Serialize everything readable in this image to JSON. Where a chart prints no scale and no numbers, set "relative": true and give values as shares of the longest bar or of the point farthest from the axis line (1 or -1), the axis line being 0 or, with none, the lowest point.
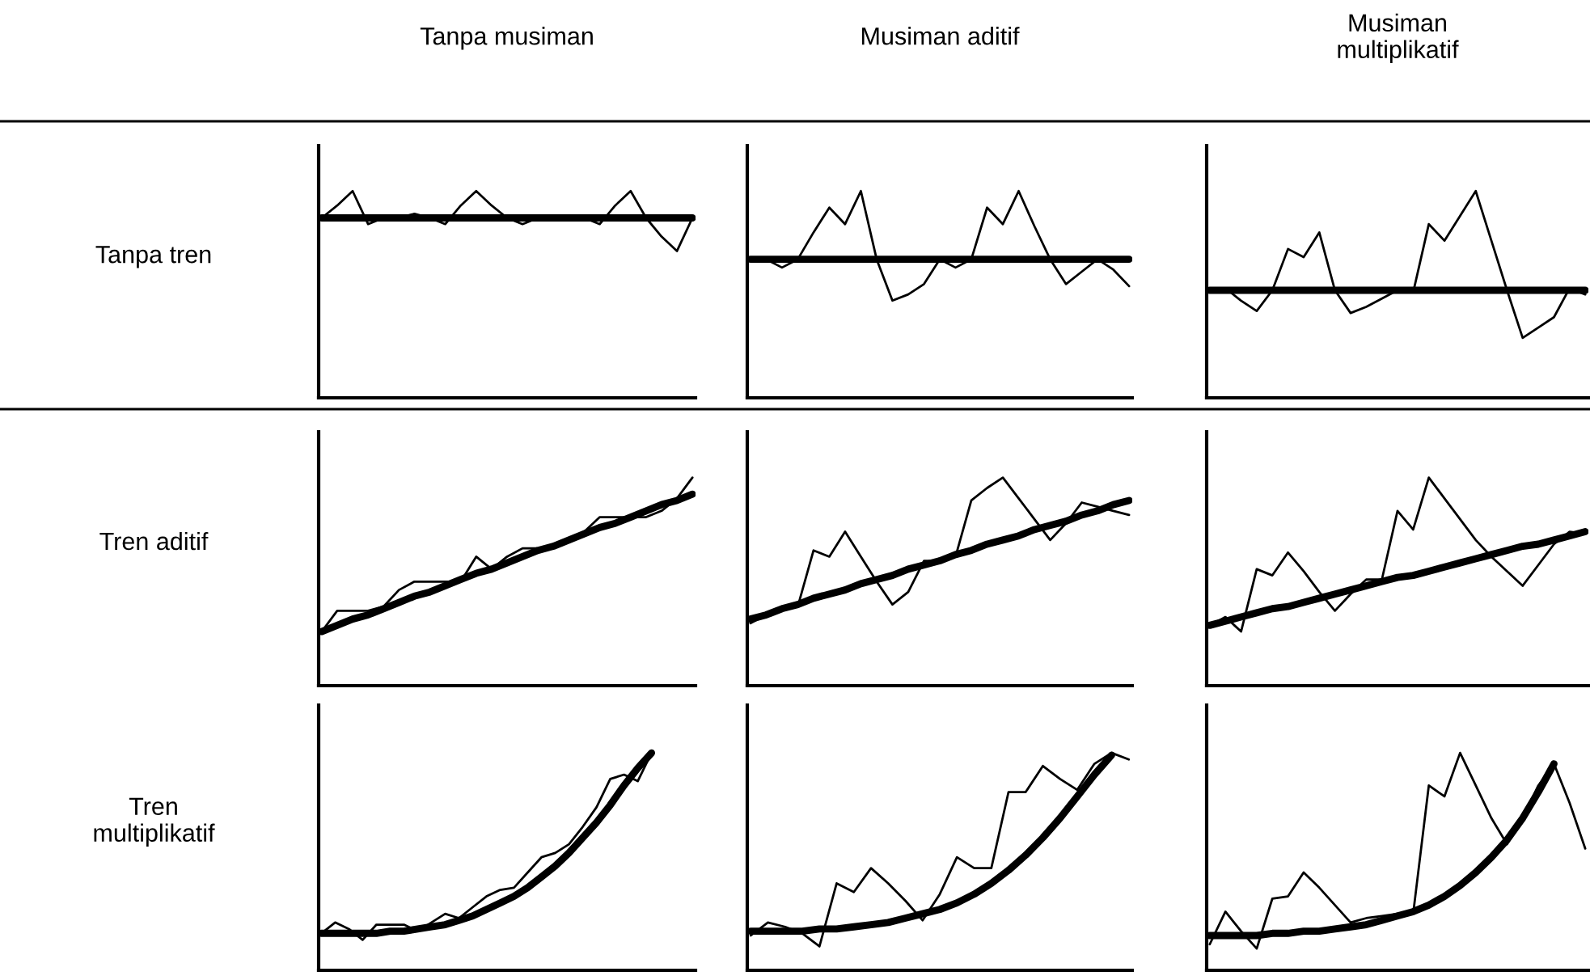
{
  "chart_data": [
    {
      "type": "line",
      "relative": true,
      "title": "Tanpa musiman",
      "ylabel": "Tanpa tren",
      "categories": [
        null,
        null,
        null,
        null,
        null,
        null,
        null,
        null,
        null,
        null,
        null,
        null,
        null,
        null,
        null,
        null,
        null,
        null,
        null,
        null,
        null,
        null,
        null,
        null,
        null
      ],
      "series": [
        {
          "color": "#000000",
          "values": [
            0.87,
            0.87,
            0.87,
            0.87,
            0.87,
            0.87,
            0.87,
            0.87,
            0.87,
            0.87,
            0.87,
            0.87,
            0.87,
            0.87,
            0.87,
            0.87,
            0.87,
            0.87,
            0.87,
            0.87,
            0.87,
            0.87,
            0.87,
            0.87,
            0.87
          ]
        },
        {
          "color": "#000000",
          "values": [
            0.87,
            0.93,
            1.0,
            0.84,
            0.87,
            0.87,
            0.89,
            0.87,
            0.84,
            0.93,
            1.0,
            0.93,
            0.87,
            0.84,
            0.87,
            0.88,
            0.88,
            0.87,
            0.84,
            0.93,
            1.0,
            0.87,
            0.78,
            0.71,
            0.87
          ]
        }
      ]
    },
    {
      "type": "line",
      "relative": true,
      "title": "Musiman aditif",
      "categories": [
        null,
        null,
        null,
        null,
        null,
        null,
        null,
        null,
        null,
        null,
        null,
        null,
        null,
        null,
        null,
        null,
        null,
        null,
        null,
        null,
        null,
        null,
        null,
        null,
        null
      ],
      "series": [
        {
          "color": "#000000",
          "values": [
            0.67,
            0.67,
            0.67,
            0.67,
            0.67,
            0.67,
            0.67,
            0.67,
            0.67,
            0.67,
            0.67,
            0.67,
            0.67,
            0.67,
            0.67,
            0.67,
            0.67,
            0.67,
            0.67,
            0.67,
            0.67,
            0.67,
            0.67,
            0.67,
            0.67
          ]
        },
        {
          "color": "#000000",
          "values": [
            0.67,
            0.67,
            0.63,
            0.67,
            0.8,
            0.92,
            0.84,
            1.0,
            0.67,
            0.47,
            0.5,
            0.55,
            0.67,
            0.63,
            0.67,
            0.92,
            0.84,
            1.0,
            0.83,
            0.67,
            0.55,
            0.61,
            0.67,
            0.62,
            0.54
          ]
        }
      ]
    },
    {
      "type": "line",
      "relative": true,
      "title": "Musiman\nmultiplikatif",
      "categories": [
        null,
        null,
        null,
        null,
        null,
        null,
        null,
        null,
        null,
        null,
        null,
        null,
        null,
        null,
        null,
        null,
        null,
        null,
        null,
        null,
        null,
        null,
        null,
        null,
        null
      ],
      "series": [
        {
          "color": "#000000",
          "values": [
            0.52,
            0.52,
            0.52,
            0.52,
            0.52,
            0.52,
            0.52,
            0.52,
            0.52,
            0.52,
            0.52,
            0.52,
            0.52,
            0.52,
            0.52,
            0.52,
            0.52,
            0.52,
            0.52,
            0.52,
            0.52,
            0.52,
            0.52,
            0.52,
            0.52
          ]
        },
        {
          "color": "#000000",
          "values": [
            0.52,
            0.53,
            0.47,
            0.42,
            0.52,
            0.72,
            0.68,
            0.8,
            0.52,
            0.41,
            0.44,
            0.48,
            0.52,
            0.51,
            0.84,
            0.76,
            0.88,
            1.0,
            0.76,
            0.52,
            0.29,
            0.34,
            0.39,
            0.53,
            0.5
          ]
        }
      ]
    },
    {
      "type": "line",
      "relative": true,
      "ylabel": "Tren aditif",
      "categories": [
        null,
        null,
        null,
        null,
        null,
        null,
        null,
        null,
        null,
        null,
        null,
        null,
        null,
        null,
        null,
        null,
        null,
        null,
        null,
        null,
        null,
        null,
        null,
        null,
        null
      ],
      "series": [
        {
          "color": "#000000",
          "values": [
            0.26,
            0.29,
            0.32,
            0.34,
            0.37,
            0.4,
            0.43,
            0.45,
            0.48,
            0.51,
            0.54,
            0.56,
            0.59,
            0.62,
            0.65,
            0.67,
            0.7,
            0.73,
            0.76,
            0.78,
            0.81,
            0.84,
            0.87,
            0.89,
            0.92
          ]
        },
        {
          "color": "#000000",
          "values": [
            0.26,
            0.36,
            0.36,
            0.36,
            0.38,
            0.46,
            0.5,
            0.5,
            0.5,
            0.5,
            0.62,
            0.56,
            0.62,
            0.66,
            0.66,
            0.66,
            0.7,
            0.74,
            0.81,
            0.81,
            0.81,
            0.81,
            0.84,
            0.9,
            1.0
          ]
        }
      ]
    },
    {
      "type": "line",
      "relative": true,
      "categories": [
        null,
        null,
        null,
        null,
        null,
        null,
        null,
        null,
        null,
        null,
        null,
        null,
        null,
        null,
        null,
        null,
        null,
        null,
        null,
        null,
        null,
        null,
        null,
        null,
        null
      ],
      "series": [
        {
          "color": "#000000",
          "values": [
            0.32,
            0.34,
            0.37,
            0.39,
            0.42,
            0.44,
            0.46,
            0.49,
            0.51,
            0.53,
            0.56,
            0.58,
            0.6,
            0.63,
            0.65,
            0.68,
            0.7,
            0.72,
            0.75,
            0.77,
            0.79,
            0.82,
            0.84,
            0.87,
            0.89
          ]
        },
        {
          "color": "#000000",
          "values": [
            0.3,
            0.34,
            0.38,
            0.38,
            0.65,
            0.62,
            0.74,
            0.62,
            0.5,
            0.39,
            0.45,
            0.6,
            0.6,
            0.62,
            0.89,
            0.95,
            1.0,
            0.9,
            0.8,
            0.7,
            0.78,
            0.88,
            0.86,
            0.84,
            0.82
          ]
        }
      ]
    },
    {
      "type": "line",
      "relative": true,
      "categories": [
        null,
        null,
        null,
        null,
        null,
        null,
        null,
        null,
        null,
        null,
        null,
        null,
        null,
        null,
        null,
        null,
        null,
        null,
        null,
        null,
        null,
        null,
        null,
        null,
        null
      ],
      "series": [
        {
          "color": "#000000",
          "values": [
            0.29,
            0.31,
            0.33,
            0.35,
            0.37,
            0.38,
            0.4,
            0.42,
            0.44,
            0.46,
            0.48,
            0.5,
            0.52,
            0.53,
            0.55,
            0.57,
            0.59,
            0.61,
            0.63,
            0.65,
            0.67,
            0.68,
            0.7,
            0.72,
            0.74
          ]
        },
        {
          "color": "#000000",
          "values": [
            0.29,
            0.33,
            0.26,
            0.56,
            0.53,
            0.64,
            0.55,
            0.45,
            0.36,
            0.44,
            0.51,
            0.51,
            0.84,
            0.75,
            1.0,
            0.9,
            0.8,
            0.7,
            0.62,
            0.55,
            0.48,
            0.58,
            0.68,
            0.74,
            0.73
          ]
        }
      ]
    },
    {
      "type": "line",
      "relative": true,
      "ylabel": "Tren\nmultiplikatif",
      "categories": [
        null,
        null,
        null,
        null,
        null,
        null,
        null,
        null,
        null,
        null,
        null,
        null,
        null,
        null,
        null,
        null,
        null,
        null,
        null,
        null,
        null,
        null,
        null,
        null,
        null,
        null,
        null,
        null
      ],
      "series": [
        {
          "color": "#000000",
          "values": [
            0.17,
            0.17,
            0.17,
            0.17,
            0.17,
            0.18,
            0.18,
            0.19,
            0.2,
            0.21,
            0.23,
            0.25,
            0.28,
            0.31,
            0.34,
            0.38,
            0.43,
            0.48,
            0.54,
            0.61,
            0.68,
            0.76,
            0.85,
            0.93,
            1.0,
            null,
            null,
            null
          ]
        },
        {
          "color": "#000000",
          "values": [
            0.17,
            0.22,
            0.19,
            0.14,
            0.21,
            0.21,
            0.21,
            0.18,
            0.22,
            0.26,
            0.24,
            0.29,
            0.34,
            0.37,
            0.38,
            0.45,
            0.52,
            0.54,
            0.58,
            0.66,
            0.75,
            0.88,
            0.9,
            0.87,
            1.0,
            null,
            null,
            null
          ]
        }
      ]
    },
    {
      "type": "line",
      "relative": true,
      "categories": [
        null,
        null,
        null,
        null,
        null,
        null,
        null,
        null,
        null,
        null,
        null,
        null,
        null,
        null,
        null,
        null,
        null,
        null,
        null,
        null,
        null,
        null,
        null
      ],
      "series": [
        {
          "color": "#000000",
          "values": [
            0.18,
            0.18,
            0.18,
            0.18,
            0.19,
            0.19,
            0.2,
            0.21,
            0.22,
            0.24,
            0.26,
            0.28,
            0.31,
            0.35,
            0.4,
            0.46,
            0.53,
            0.61,
            0.7,
            0.8,
            0.9,
            0.99,
            null
          ]
        },
        {
          "color": "#000000",
          "values": [
            0.16,
            0.22,
            0.2,
            0.17,
            0.11,
            0.4,
            0.36,
            0.47,
            0.4,
            0.32,
            0.23,
            0.35,
            0.52,
            0.47,
            0.47,
            0.82,
            0.82,
            0.94,
            0.88,
            0.83,
            0.95,
            1.0,
            0.97
          ]
        }
      ]
    },
    {
      "type": "line",
      "relative": true,
      "categories": [
        null,
        null,
        null,
        null,
        null,
        null,
        null,
        null,
        null,
        null,
        null,
        null,
        null,
        null,
        null,
        null,
        null,
        null,
        null,
        null,
        null,
        null,
        null,
        null,
        null
      ],
      "series": [
        {
          "color": "#000000",
          "values": [
            0.16,
            0.16,
            0.16,
            0.16,
            0.17,
            0.17,
            0.18,
            0.18,
            0.19,
            0.2,
            0.21,
            0.23,
            0.25,
            0.27,
            0.3,
            0.34,
            0.39,
            0.45,
            0.52,
            0.6,
            0.7,
            0.82,
            0.95,
            null,
            null
          ]
        },
        {
          "color": "#000000",
          "values": [
            0.12,
            0.27,
            0.18,
            0.1,
            0.33,
            0.34,
            0.45,
            0.38,
            0.3,
            0.22,
            0.24,
            0.25,
            0.26,
            0.26,
            0.85,
            0.8,
            1.0,
            0.85,
            0.7,
            0.58,
            0.7,
            0.85,
            0.95,
            0.77,
            0.56
          ]
        }
      ]
    }
  ]
}
